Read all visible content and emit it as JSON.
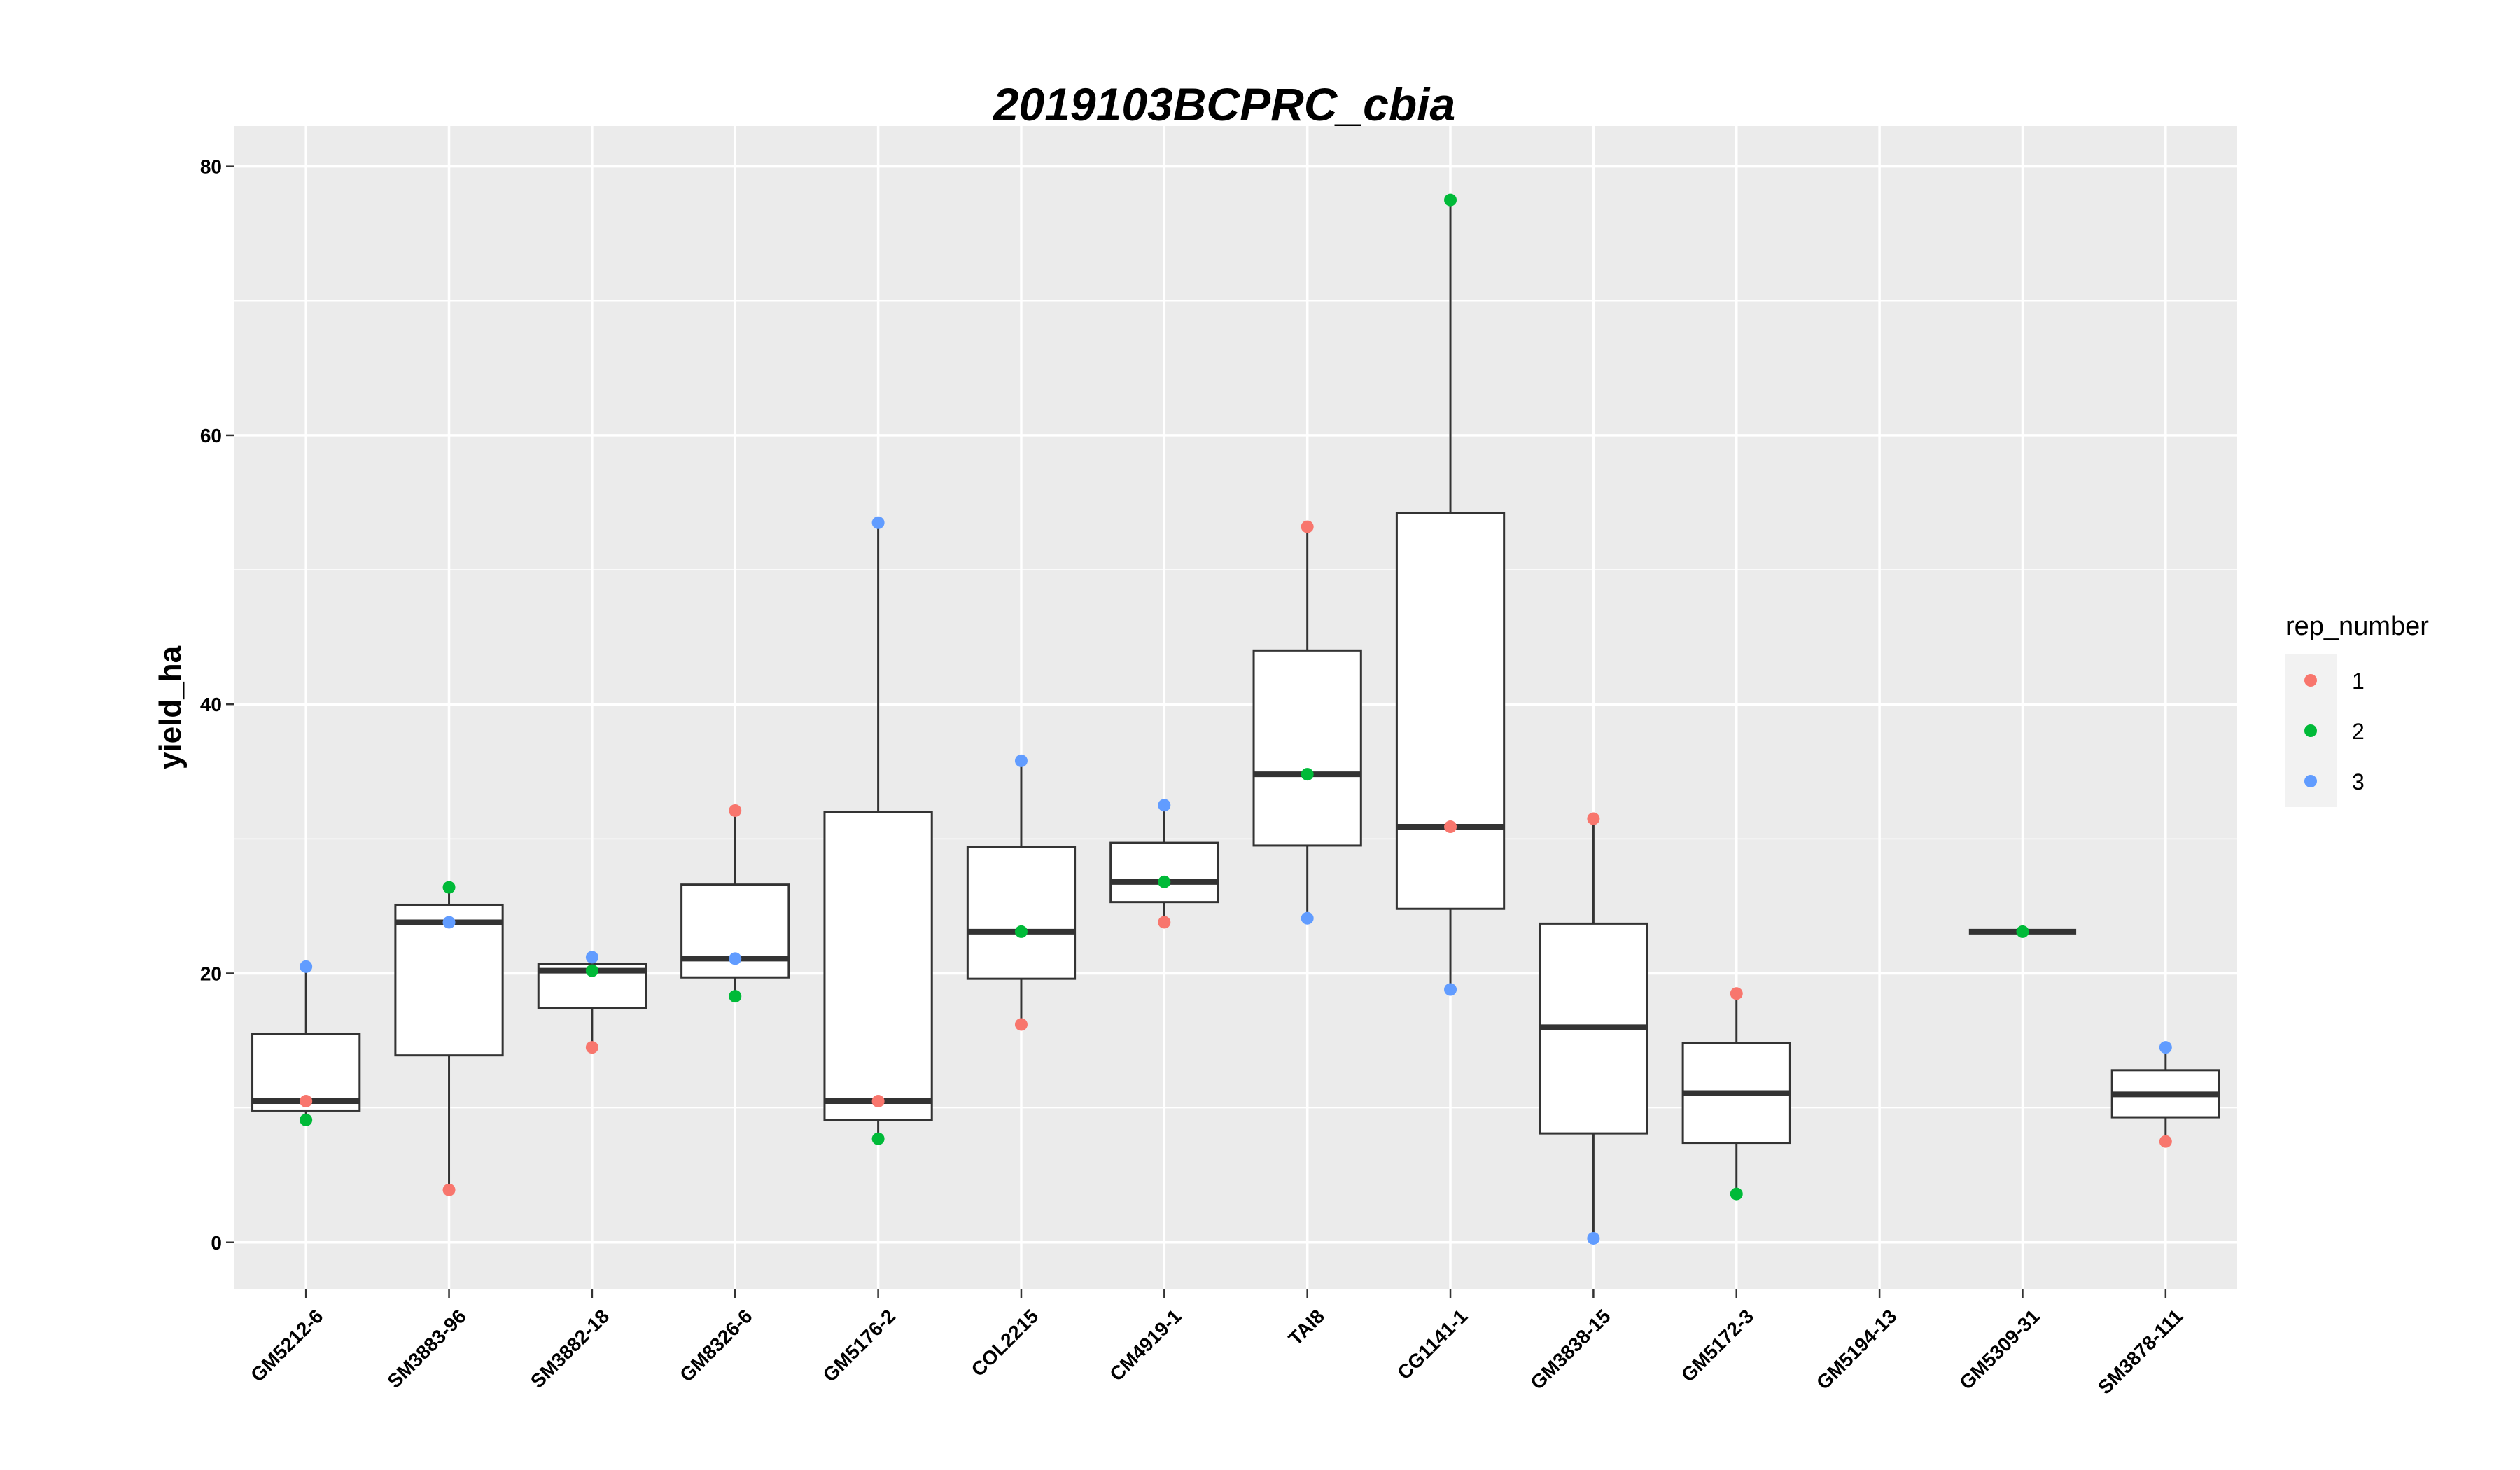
{
  "chart_data": {
    "type": "boxplot",
    "title": "2019103BCPRC_cbia",
    "xlabel": "",
    "ylabel": "yield_ha",
    "ylim": [
      -3.5,
      83
    ],
    "yticks": [
      0,
      20,
      40,
      60,
      80
    ],
    "grid": true,
    "legend": {
      "title": "rep_number",
      "placement": "right",
      "entries": [
        {
          "label": "1",
          "color": "#F8766D"
        },
        {
          "label": "2",
          "color": "#00BA38"
        },
        {
          "label": "3",
          "color": "#619CFF"
        }
      ]
    },
    "categories": [
      "GM5212-6",
      "SM3883-96",
      "SM3882-18",
      "GM8326-6",
      "GM5176-2",
      "COL2215",
      "CM4919-1",
      "TAI8",
      "CG1141-1",
      "GM3838-15",
      "GM5172-3",
      "GM5194-13",
      "GM5309-31",
      "SM3878-111"
    ],
    "boxes": [
      {
        "category": "GM5212-6",
        "min": 9.1,
        "q1": 9.8,
        "median": 10.5,
        "q3": 15.5,
        "max": 20.5
      },
      {
        "category": "SM3883-96",
        "min": 3.9,
        "q1": 13.9,
        "median": 23.8,
        "q3": 25.1,
        "max": 26.4
      },
      {
        "category": "SM3882-18",
        "min": 14.5,
        "q1": 17.4,
        "median": 20.2,
        "q3": 20.7,
        "max": 21.2
      },
      {
        "category": "GM8326-6",
        "min": 18.3,
        "q1": 19.7,
        "median": 21.1,
        "q3": 26.6,
        "max": 32.1
      },
      {
        "category": "GM5176-2",
        "min": 7.7,
        "q1": 9.1,
        "median": 10.5,
        "q3": 32.0,
        "max": 53.5
      },
      {
        "category": "COL2215",
        "min": 16.2,
        "q1": 19.6,
        "median": 23.1,
        "q3": 29.4,
        "max": 35.8
      },
      {
        "category": "CM4919-1",
        "min": 23.8,
        "q1": 25.3,
        "median": 26.8,
        "q3": 29.7,
        "max": 32.5
      },
      {
        "category": "TAI8",
        "min": 24.1,
        "q1": 29.5,
        "median": 34.8,
        "q3": 44.0,
        "max": 53.2
      },
      {
        "category": "CG1141-1",
        "min": 18.8,
        "q1": 24.8,
        "median": 30.9,
        "q3": 54.2,
        "max": 77.5
      },
      {
        "category": "GM3838-15",
        "min": 0.3,
        "q1": 8.1,
        "median": 16.0,
        "q3": 23.7,
        "max": 31.5
      },
      {
        "category": "GM5172-3",
        "min": 3.6,
        "q1": 7.4,
        "median": 11.1,
        "q3": 14.8,
        "max": 18.5
      },
      {
        "category": "GM5194-13",
        "min": null,
        "q1": null,
        "median": null,
        "q3": null,
        "max": null
      },
      {
        "category": "GM5309-31",
        "min": 23.1,
        "q1": 23.1,
        "median": 23.1,
        "q3": 23.1,
        "max": 23.1
      },
      {
        "category": "SM3878-111",
        "min": 7.5,
        "q1": 9.3,
        "median": 11.0,
        "q3": 12.8,
        "max": 14.5
      }
    ],
    "points": [
      {
        "category": "GM5212-6",
        "rep": "3",
        "y": 20.5
      },
      {
        "category": "GM5212-6",
        "rep": "1",
        "y": 10.5
      },
      {
        "category": "GM5212-6",
        "rep": "2",
        "y": 9.1
      },
      {
        "category": "SM3883-96",
        "rep": "2",
        "y": 26.4
      },
      {
        "category": "SM3883-96",
        "rep": "3",
        "y": 23.8
      },
      {
        "category": "SM3883-96",
        "rep": "1",
        "y": 3.9
      },
      {
        "category": "SM3882-18",
        "rep": "3",
        "y": 21.2
      },
      {
        "category": "SM3882-18",
        "rep": "2",
        "y": 20.2
      },
      {
        "category": "SM3882-18",
        "rep": "1",
        "y": 14.5
      },
      {
        "category": "GM8326-6",
        "rep": "1",
        "y": 32.1
      },
      {
        "category": "GM8326-6",
        "rep": "3",
        "y": 21.1
      },
      {
        "category": "GM8326-6",
        "rep": "2",
        "y": 18.3
      },
      {
        "category": "GM5176-2",
        "rep": "3",
        "y": 53.5
      },
      {
        "category": "GM5176-2",
        "rep": "1",
        "y": 10.5
      },
      {
        "category": "GM5176-2",
        "rep": "2",
        "y": 7.7
      },
      {
        "category": "COL2215",
        "rep": "3",
        "y": 35.8
      },
      {
        "category": "COL2215",
        "rep": "2",
        "y": 23.1
      },
      {
        "category": "COL2215",
        "rep": "1",
        "y": 16.2
      },
      {
        "category": "CM4919-1",
        "rep": "3",
        "y": 32.5
      },
      {
        "category": "CM4919-1",
        "rep": "2",
        "y": 26.8
      },
      {
        "category": "CM4919-1",
        "rep": "1",
        "y": 23.8
      },
      {
        "category": "TAI8",
        "rep": "1",
        "y": 53.2
      },
      {
        "category": "TAI8",
        "rep": "2",
        "y": 34.8
      },
      {
        "category": "TAI8",
        "rep": "3",
        "y": 24.1
      },
      {
        "category": "CG1141-1",
        "rep": "2",
        "y": 77.5
      },
      {
        "category": "CG1141-1",
        "rep": "1",
        "y": 30.9
      },
      {
        "category": "CG1141-1",
        "rep": "3",
        "y": 18.8
      },
      {
        "category": "GM3838-15",
        "rep": "1",
        "y": 31.5
      },
      {
        "category": "GM3838-15",
        "rep": "3",
        "y": 0.3
      },
      {
        "category": "GM5172-3",
        "rep": "1",
        "y": 18.5
      },
      {
        "category": "GM5172-3",
        "rep": "2",
        "y": 3.6
      },
      {
        "category": "GM5309-31",
        "rep": "2",
        "y": 23.1
      },
      {
        "category": "SM3878-111",
        "rep": "3",
        "y": 14.5
      },
      {
        "category": "SM3878-111",
        "rep": "1",
        "y": 7.5
      }
    ]
  }
}
